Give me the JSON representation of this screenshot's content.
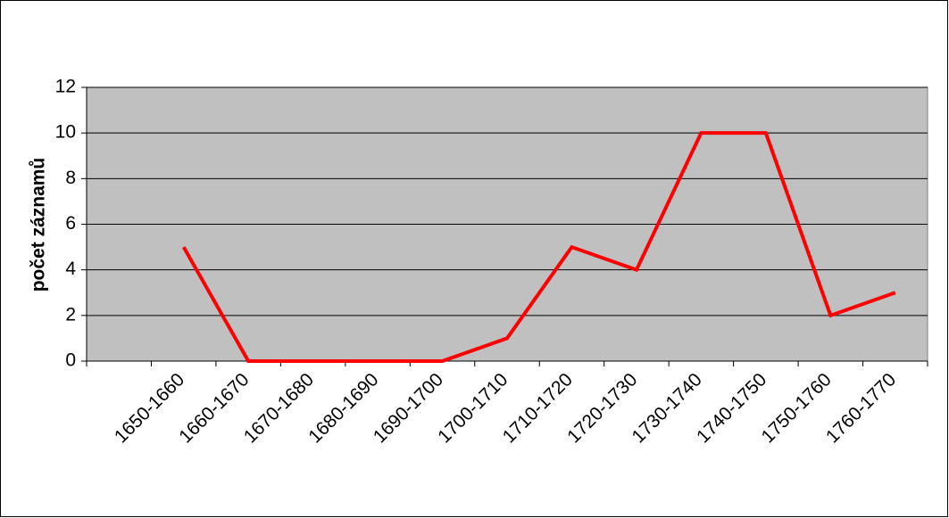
{
  "chart_data": {
    "type": "line",
    "y_label": "počet záznamů",
    "categories": [
      null,
      "1650-1660",
      "1660-1670",
      "1670-1680",
      "1680-1690",
      "1690-1700",
      "1700-1710",
      "1710-1720",
      "1720-1730",
      "1730-1740",
      "1740-1750",
      "1750-1760",
      "1760-1770"
    ],
    "series": [
      {
        "name": "počet záznamů",
        "color": "#ff0000",
        "values": [
          null,
          5,
          0,
          0,
          0,
          0,
          1,
          5,
          4,
          10,
          10,
          2,
          3
        ]
      }
    ],
    "ylim": [
      0,
      12
    ],
    "yticks": [
      0,
      2,
      4,
      6,
      8,
      10,
      12
    ],
    "grid": true,
    "plot_background": "#c0c0c0"
  }
}
